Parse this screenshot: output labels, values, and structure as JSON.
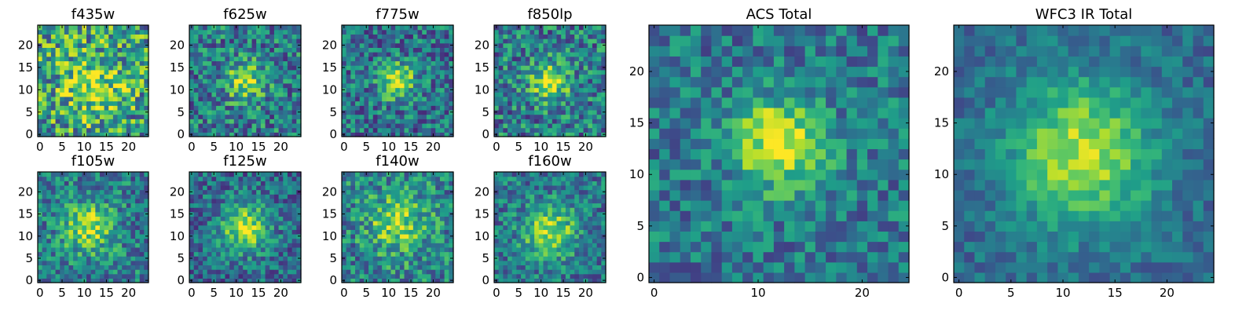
{
  "chart_data": {
    "type": "heatmap",
    "colormap": "viridis",
    "grid": false,
    "panels": [
      {
        "id": "f435w",
        "title": "f435w",
        "xticks": [
          0,
          5,
          10,
          15,
          20
        ],
        "yticks": [
          0,
          5,
          10,
          15,
          20
        ],
        "xlim": [
          -0.5,
          24.5
        ],
        "ylim": [
          -0.5,
          24.5
        ],
        "noise": 0.38,
        "peak": 0.32,
        "sigma": 5.0,
        "base": 0.55,
        "cx": 12,
        "cy": 11,
        "seed": 11
      },
      {
        "id": "f625w",
        "title": "f625w",
        "xticks": [
          0,
          5,
          10,
          15,
          20
        ],
        "yticks": [
          0,
          5,
          10,
          15,
          20
        ],
        "xlim": [
          -0.5,
          24.5
        ],
        "ylim": [
          -0.5,
          24.5
        ],
        "noise": 0.3,
        "peak": 0.45,
        "sigma": 3.0,
        "base": 0.42,
        "cx": 12,
        "cy": 12,
        "seed": 23
      },
      {
        "id": "f775w",
        "title": "f775w",
        "xticks": [
          0,
          5,
          10,
          15,
          20
        ],
        "yticks": [
          0,
          5,
          10,
          15,
          20
        ],
        "xlim": [
          -0.5,
          24.5
        ],
        "ylim": [
          -0.5,
          24.5
        ],
        "noise": 0.28,
        "peak": 0.55,
        "sigma": 2.8,
        "base": 0.38,
        "cx": 12,
        "cy": 12,
        "seed": 37
      },
      {
        "id": "f850lp",
        "title": "f850lp",
        "xticks": [
          0,
          5,
          10,
          15,
          20
        ],
        "yticks": [
          0,
          5,
          10,
          15,
          20
        ],
        "xlim": [
          -0.5,
          24.5
        ],
        "ylim": [
          -0.5,
          24.5
        ],
        "noise": 0.3,
        "peak": 0.5,
        "sigma": 3.0,
        "base": 0.42,
        "cx": 12,
        "cy": 12,
        "seed": 41
      },
      {
        "id": "f105w",
        "title": "f105w",
        "xticks": [
          0,
          5,
          10,
          15,
          20
        ],
        "yticks": [
          0,
          5,
          10,
          15,
          20
        ],
        "xlim": [
          -0.5,
          24.5
        ],
        "ylim": [
          -0.5,
          24.5
        ],
        "noise": 0.26,
        "peak": 0.45,
        "sigma": 4.0,
        "base": 0.42,
        "cx": 11,
        "cy": 12,
        "seed": 53
      },
      {
        "id": "f125w",
        "title": "f125w",
        "xticks": [
          0,
          5,
          10,
          15,
          20
        ],
        "yticks": [
          0,
          5,
          10,
          15,
          20
        ],
        "xlim": [
          -0.5,
          24.5
        ],
        "ylim": [
          -0.5,
          24.5
        ],
        "noise": 0.24,
        "peak": 0.55,
        "sigma": 3.8,
        "base": 0.35,
        "cx": 12,
        "cy": 12,
        "seed": 67
      },
      {
        "id": "f140w",
        "title": "f140w",
        "xticks": [
          0,
          5,
          10,
          15,
          20
        ],
        "yticks": [
          0,
          5,
          10,
          15,
          20
        ],
        "xlim": [
          -0.5,
          24.5
        ],
        "ylim": [
          -0.5,
          24.5
        ],
        "noise": 0.28,
        "peak": 0.4,
        "sigma": 4.5,
        "base": 0.45,
        "cx": 12,
        "cy": 13,
        "seed": 79
      },
      {
        "id": "f160w",
        "title": "f160w",
        "xticks": [
          0,
          5,
          10,
          15,
          20
        ],
        "yticks": [
          0,
          5,
          10,
          15,
          20
        ],
        "xlim": [
          -0.5,
          24.5
        ],
        "ylim": [
          -0.5,
          24.5
        ],
        "noise": 0.24,
        "peak": 0.5,
        "sigma": 4.0,
        "base": 0.4,
        "cx": 12,
        "cy": 11,
        "seed": 83
      },
      {
        "id": "acs-total",
        "title": "ACS Total",
        "xticks": [
          0,
          10,
          20
        ],
        "yticks": [
          0,
          5,
          10,
          15,
          20
        ],
        "xlim": [
          -0.5,
          24.5
        ],
        "ylim": [
          -0.5,
          24.5
        ],
        "noise": 0.22,
        "peak": 0.6,
        "sigma": 3.0,
        "base": 0.4,
        "cx": 12,
        "cy": 13,
        "seed": 97
      },
      {
        "id": "wfc3-ir-total",
        "title": "WFC3 IR Total",
        "xticks": [
          0,
          5,
          10,
          15,
          20
        ],
        "yticks": [
          0,
          5,
          10,
          15,
          20
        ],
        "xlim": [
          -0.5,
          24.5
        ],
        "ylim": [
          -0.5,
          24.5
        ],
        "noise": 0.14,
        "peak": 0.55,
        "sigma": 4.8,
        "base": 0.35,
        "cx": 12,
        "cy": 12,
        "seed": 101
      }
    ]
  }
}
